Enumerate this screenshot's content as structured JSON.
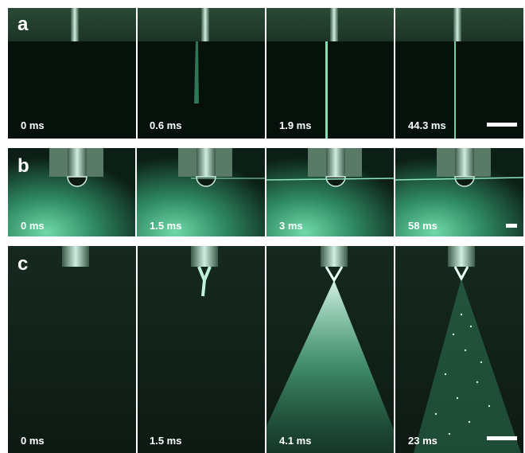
{
  "panels": [
    {
      "label": "a",
      "frames": [
        "0 ms",
        "0.6 ms",
        "1.9 ms",
        "44.3 ms"
      ]
    },
    {
      "label": "b",
      "frames": [
        "0 ms",
        "1.5 ms",
        "3 ms",
        "58 ms"
      ]
    },
    {
      "label": "c",
      "frames": [
        "0 ms",
        "1.5 ms",
        "4.1 ms",
        "23 ms"
      ]
    }
  ]
}
